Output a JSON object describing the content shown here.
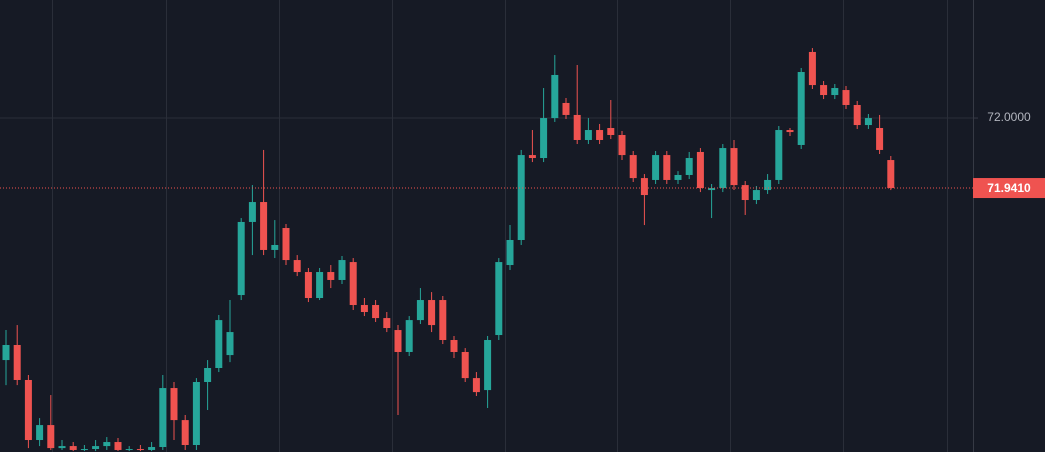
{
  "chart_data": {
    "type": "candlestick",
    "open": [
      71.796,
      71.8087,
      71.7792,
      71.7286,
      71.7412,
      71.7218,
      71.7235,
      71.7202,
      71.721,
      71.7235,
      71.7269,
      71.7202,
      71.721,
      71.7202,
      71.7227,
      71.7724,
      71.7454,
      71.7244,
      71.7775,
      71.7893,
      71.8002,
      71.8508,
      71.9124,
      71.9292,
      71.8888,
      71.9073,
      71.8803,
      71.8702,
      71.8483,
      71.8702,
      71.8635,
      71.8786,
      71.8424,
      71.8424,
      71.8314,
      71.8213,
      71.8028,
      71.8297,
      71.8466,
      71.8466,
      71.8129,
      71.8028,
      71.7808,
      71.7707,
      71.8171,
      71.8761,
      71.8972,
      71.9688,
      71.9663,
      72.0,
      72.0127,
      72.0026,
      71.9815,
      71.9899,
      71.9916,
      71.9857,
      71.9688,
      71.9494,
      71.9478,
      71.9688,
      71.9478,
      71.952,
      71.9714,
      71.9393,
      71.941,
      71.9747,
      71.9435,
      71.9309,
      71.9393,
      71.9478,
      71.9899,
      71.9773,
      72.0557,
      72.0278,
      72.0194,
      72.0236,
      72.011,
      71.9941,
      71.9916,
      71.9646
    ],
    "high": [
      71.8213,
      71.8255,
      71.7834,
      71.7471,
      71.7665,
      71.7286,
      71.7269,
      71.7244,
      71.7286,
      71.7311,
      71.7303,
      71.7235,
      71.7244,
      71.7269,
      71.7834,
      71.7775,
      71.7497,
      71.7808,
      71.796,
      71.834,
      71.8466,
      71.9157,
      71.9435,
      71.9731,
      71.914,
      71.9107,
      71.8845,
      71.8736,
      71.8736,
      71.8761,
      71.8837,
      71.882,
      71.8483,
      71.8466,
      71.8365,
      71.8255,
      71.8331,
      71.8567,
      71.8533,
      71.85,
      71.8163,
      71.8061,
      71.7859,
      71.8163,
      71.882,
      71.9098,
      71.9731,
      71.9899,
      72.0253,
      72.0531,
      72.0169,
      72.0447,
      72.0,
      71.995,
      72.0152,
      71.9891,
      71.9722,
      71.9528,
      71.9722,
      71.9722,
      71.9553,
      71.9714,
      71.9747,
      71.9444,
      71.9781,
      71.9815,
      71.9469,
      71.9427,
      71.9528,
      71.9933,
      71.9916,
      72.0422,
      72.059,
      72.0312,
      72.0287,
      72.027,
      72.0144,
      72.0034,
      72.0026,
      71.968
    ],
    "low": [
      71.7749,
      71.7749,
      71.7218,
      71.7235,
      71.7202,
      71.7202,
      71.7193,
      71.7193,
      71.7193,
      71.7202,
      71.7193,
      71.7193,
      71.7193,
      71.7193,
      71.7202,
      71.7286,
      71.7202,
      71.7202,
      71.7539,
      71.7859,
      71.7943,
      71.8466,
      71.8845,
      71.8845,
      71.882,
      71.8761,
      71.8668,
      71.8449,
      71.8466,
      71.8567,
      71.8601,
      71.8382,
      71.8331,
      71.8281,
      71.8196,
      71.7497,
      71.7994,
      71.8264,
      71.8196,
      71.8095,
      71.7977,
      71.7775,
      71.7657,
      71.7556,
      71.8129,
      71.8719,
      71.893,
      71.9629,
      71.9629,
      71.9967,
      71.9992,
      71.9781,
      71.9781,
      71.9781,
      71.9823,
      71.9646,
      71.9461,
      71.9098,
      71.9444,
      71.9444,
      71.9444,
      71.9486,
      71.9376,
      71.9157,
      71.9376,
      71.9393,
      71.9183,
      71.9275,
      71.936,
      71.9444,
      71.9849,
      71.9739,
      72.0245,
      72.016,
      72.016,
      72.0076,
      71.9908,
      71.9908,
      71.9697,
      71.9393
    ],
    "close": [
      71.8087,
      71.7792,
      71.7286,
      71.7412,
      71.7218,
      71.7235,
      71.7202,
      71.721,
      71.7235,
      71.7269,
      71.7202,
      71.721,
      71.7202,
      71.7227,
      71.7724,
      71.7454,
      71.7244,
      71.7775,
      71.7893,
      71.8297,
      71.8196,
      71.9124,
      71.9292,
      71.8888,
      71.893,
      71.8803,
      71.8702,
      71.8483,
      71.8702,
      71.8635,
      71.8803,
      71.8424,
      71.8365,
      71.8314,
      71.823,
      71.8028,
      71.8297,
      71.8466,
      71.8255,
      71.8129,
      71.8028,
      71.7808,
      71.769,
      71.8129,
      71.8786,
      71.8972,
      71.9688,
      71.9663,
      72.0,
      72.0363,
      72.0026,
      71.9815,
      71.9899,
      71.9815,
      71.9857,
      71.9688,
      71.9494,
      71.9351,
      71.9688,
      71.9478,
      71.952,
      71.9663,
      71.941,
      71.941,
      71.9747,
      71.9435,
      71.9309,
      71.9393,
      71.9478,
      71.9899,
      71.9882,
      72.0388,
      72.0278,
      72.0194,
      72.0253,
      72.011,
      71.9941,
      72.0,
      71.9731,
      71.941
    ],
    "up_color": "#26a69a",
    "down_color": "#ef5350",
    "ylim": [
      71.7185,
      72.0995
    ],
    "yticks": [
      {
        "value": 72,
        "label": "72.0000"
      }
    ],
    "grid": true,
    "last_price": {
      "value": 71.941,
      "label": "71.9410"
    }
  }
}
